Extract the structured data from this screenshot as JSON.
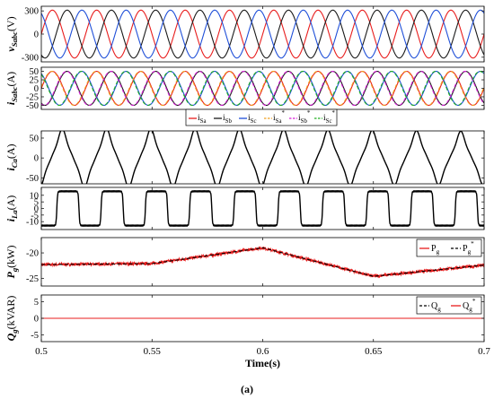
{
  "figure_label": "(a)",
  "chart_data": [
    {
      "type": "line",
      "id": "vsabc",
      "ylabel": "v_Sabc(V)",
      "ylim": [
        -360,
        360
      ],
      "yticks": [
        300,
        0,
        -300
      ],
      "ytick_labels": [
        "300",
        "0",
        "-300"
      ],
      "grid": false,
      "signal": {
        "kind": "three-phase-sine",
        "amplitude": 310,
        "frequency_hz": 50
      },
      "series": [
        {
          "name": "",
          "color": "#e81d1d",
          "phase_deg": 0
        },
        {
          "name": "",
          "color": "#1a1a1a",
          "phase_deg": -120
        },
        {
          "name": "",
          "color": "#1f4fd8",
          "phase_deg": 120
        }
      ]
    },
    {
      "type": "line",
      "id": "isabc",
      "ylabel": "i_Sabc(A)",
      "ylim": [
        -62,
        62
      ],
      "yticks": [
        50,
        25,
        0,
        -25,
        -50
      ],
      "ytick_labels": [
        "50",
        "25",
        "0",
        "-25",
        "-50"
      ],
      "grid": false,
      "signal": {
        "kind": "three-phase-sine",
        "amplitude": 50,
        "frequency_hz": 50
      },
      "series": [
        {
          "name": "i_Sa",
          "color": "#e81d1d",
          "phase_deg": 0,
          "dash": "solid"
        },
        {
          "name": "i_Sb",
          "color": "#1a1a1a",
          "phase_deg": -120,
          "dash": "solid"
        },
        {
          "name": "i_Sc",
          "color": "#1f4fd8",
          "phase_deg": 120,
          "dash": "solid"
        },
        {
          "name": "i_Sa*",
          "color": "#f0a020",
          "phase_deg": 5,
          "dash": "dashed"
        },
        {
          "name": "i_Sb*",
          "color": "#d61fd6",
          "phase_deg": -115,
          "dash": "dashed"
        },
        {
          "name": "i_Sc*",
          "color": "#22b022",
          "phase_deg": 125,
          "dash": "dashed"
        }
      ],
      "legend_position": "bottom-outside"
    },
    {
      "type": "line",
      "id": "ica",
      "ylabel": "i_Ca(A)",
      "ylim": [
        -65,
        68
      ],
      "yticks": [
        50,
        0,
        -50
      ],
      "ytick_labels": [
        "50",
        "0",
        "-50"
      ],
      "grid": false,
      "signal": {
        "kind": "distorted-sine",
        "amplitude": 58,
        "frequency_hz": 50
      },
      "series": [
        {
          "name": "",
          "color": "#000000"
        }
      ]
    },
    {
      "type": "line",
      "id": "ila",
      "ylabel": "i_La(A)",
      "ylim": [
        -16,
        16
      ],
      "yticks": [
        10,
        5,
        0,
        -5,
        -10
      ],
      "ytick_labels": [
        "10",
        "5",
        "0",
        "-5",
        "-10"
      ],
      "grid": false,
      "signal": {
        "kind": "square-wave",
        "amplitude": 13,
        "frequency_hz": 50
      },
      "series": [
        {
          "name": "",
          "color": "#000000"
        }
      ]
    },
    {
      "type": "line",
      "id": "pg",
      "ylabel": "P_g(kW)",
      "ylim": [
        -26.5,
        -17
      ],
      "yticks": [
        -20,
        -25
      ],
      "ytick_labels": [
        "-20",
        "-25"
      ],
      "grid": false,
      "x": [
        0.5,
        0.55,
        0.6,
        0.65,
        0.7
      ],
      "series": [
        {
          "name": "P_g",
          "color": "#e81d1d",
          "values": [
            -22.3,
            -22.1,
            -19.0,
            -24.6,
            -22.4
          ]
        },
        {
          "name": "P_g*",
          "color": "#000000",
          "dash": "dashed",
          "values": [
            -22.3,
            -22.1,
            -19.0,
            -24.6,
            -22.4
          ]
        }
      ],
      "legend_position": "top-right"
    },
    {
      "type": "line",
      "id": "qg",
      "ylabel": "Q_g(kVAR)",
      "ylim": [
        -7,
        7
      ],
      "yticks": [
        5,
        0,
        -5
      ],
      "ytick_labels": [
        "5",
        "0",
        "-5"
      ],
      "grid": false,
      "x": [
        0.5,
        0.7
      ],
      "series": [
        {
          "name": "Q_g",
          "color": "#000000",
          "dash": "dashed",
          "values": [
            0,
            0
          ]
        },
        {
          "name": "Q_g*",
          "color": "#e81d1d",
          "values": [
            0,
            0
          ]
        }
      ],
      "legend_position": "top-right"
    }
  ],
  "shared_x_axis": {
    "xlabel": "Time(s)",
    "xlim": [
      0.5,
      0.7
    ],
    "xticks": [
      0.5,
      0.55,
      0.6,
      0.65,
      0.7
    ],
    "xtick_labels": [
      "0.5",
      "0.55",
      "0.6",
      "0.65",
      "0.7"
    ]
  }
}
